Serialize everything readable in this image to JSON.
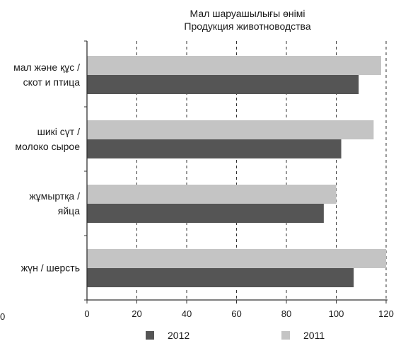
{
  "chart_data": {
    "type": "bar",
    "orientation": "horizontal",
    "title_lines": [
      "Мал шаруашылығы өнімі",
      "Продукция животноводства"
    ],
    "categories": [
      [
        "мал және құс /",
        "скот и птица"
      ],
      [
        "шикі сүт /",
        "молоко сырое"
      ],
      [
        "жұмыртқа /",
        "яйца"
      ],
      [
        "жүн / шерсть"
      ]
    ],
    "series": [
      {
        "name": "2012",
        "color": "#555555",
        "values": [
          109,
          102,
          95,
          107
        ]
      },
      {
        "name": "2011",
        "color": "#c4c4c4",
        "values": [
          118,
          115,
          100,
          120
        ]
      }
    ],
    "xlim": [
      0,
      120
    ],
    "xticks": [
      "0",
      "20",
      "40",
      "60",
      "80",
      "100",
      "120"
    ],
    "stray_left_label": "0",
    "grid": "vertical-dashed",
    "legend_position": "bottom"
  }
}
